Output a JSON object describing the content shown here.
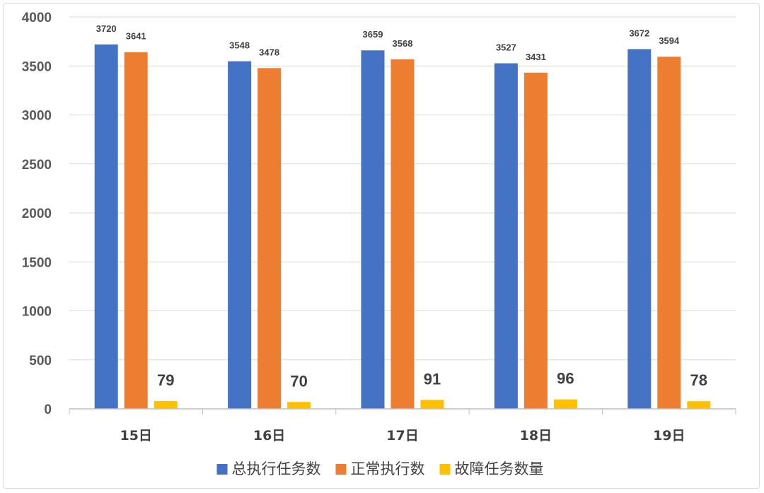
{
  "chart_data": {
    "type": "bar",
    "categories": [
      "15日",
      "16日",
      "17日",
      "18日",
      "19日"
    ],
    "series": [
      {
        "name": "总执行任务数",
        "values": [
          3720,
          3548,
          3659,
          3527,
          3672
        ],
        "color": "#4472C4"
      },
      {
        "name": "正常执行数",
        "values": [
          3641,
          3478,
          3568,
          3431,
          3594
        ],
        "color": "#ED7D31"
      },
      {
        "name": "故障任务数量",
        "values": [
          79,
          70,
          91,
          96,
          78
        ],
        "color": "#FFC000"
      }
    ],
    "ylim": [
      0,
      4000
    ],
    "yticks": [
      0,
      500,
      1000,
      1500,
      2000,
      2500,
      3000,
      3500,
      4000
    ],
    "grid": true,
    "legend": "bottom",
    "data_labels": true
  }
}
